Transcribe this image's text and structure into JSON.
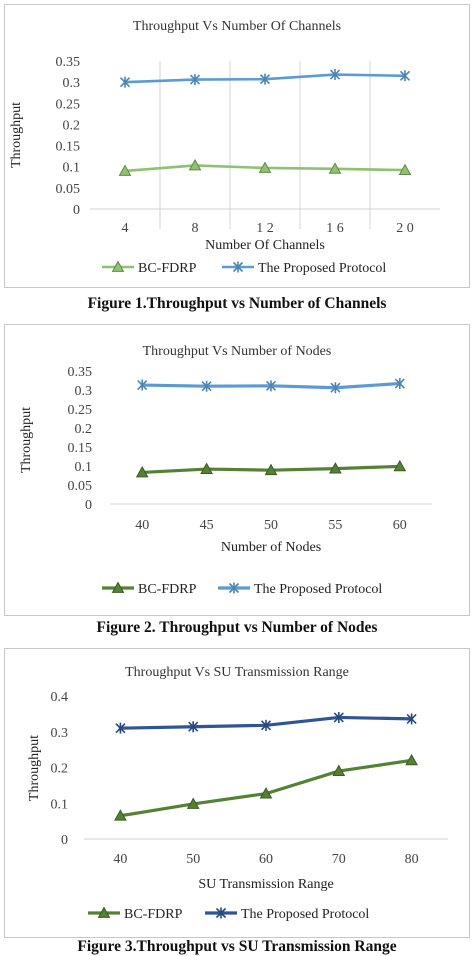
{
  "captions": [
    "Figure 1.Throughput vs Number of Channels",
    "Figure 2. Throughput vs Number of Nodes",
    "Figure 3.Throughput vs SU Transmission Range"
  ],
  "chart_data": [
    {
      "type": "line",
      "title": "Throughput Vs Number Of Channels",
      "xlabel": "Number Of Channels",
      "ylabel": "Throughput",
      "x_tick_labels": [
        "4",
        "8",
        "1 2",
        "1 6",
        "2 0"
      ],
      "y_tick_labels": [
        "0",
        "0.05",
        "0.1",
        "0.15",
        "0.2",
        "0.25",
        "0.3",
        "0.35"
      ],
      "ylim": [
        0,
        0.35
      ],
      "categories": [
        4,
        8,
        12,
        16,
        20
      ],
      "grid": "vertical",
      "legend_position": "bottom",
      "series": [
        {
          "name": "BC-FDRP",
          "values": [
            0.09,
            0.103,
            0.097,
            0.095,
            0.092
          ],
          "color": "#8dc26f",
          "marker": "triangle"
        },
        {
          "name": "The Proposed Protocol",
          "values": [
            0.3,
            0.306,
            0.307,
            0.318,
            0.315
          ],
          "color": "#5b9bd5",
          "marker": "star"
        }
      ]
    },
    {
      "type": "line",
      "title": "Throughput Vs Number of Nodes",
      "xlabel": "Number of Nodes",
      "ylabel": "Throughput",
      "x_tick_labels": [
        "40",
        "45",
        "50",
        "55",
        "60"
      ],
      "y_tick_labels": [
        "0",
        "0.05",
        "0.1",
        "0.15",
        "0.2",
        "0.25",
        "0.3",
        "0.35"
      ],
      "ylim": [
        0,
        0.35
      ],
      "categories": [
        40,
        45,
        50,
        55,
        60
      ],
      "grid": "none",
      "legend_position": "bottom",
      "series": [
        {
          "name": "BC-FDRP",
          "values": [
            0.083,
            0.092,
            0.089,
            0.093,
            0.099
          ],
          "color": "#548235",
          "marker": "triangle"
        },
        {
          "name": "The Proposed Protocol",
          "values": [
            0.313,
            0.31,
            0.311,
            0.306,
            0.317
          ],
          "color": "#5b9bd5",
          "marker": "star"
        }
      ]
    },
    {
      "type": "line",
      "title": "Throughput Vs SU Transmission Range",
      "xlabel": "SU Transmission Range",
      "ylabel": "Throughput",
      "x_tick_labels": [
        "40",
        "50",
        "60",
        "70",
        "80"
      ],
      "y_tick_labels": [
        "0",
        "0.1",
        "0.2",
        "0.3",
        "0.4"
      ],
      "ylim": [
        0,
        0.4
      ],
      "categories": [
        40,
        50,
        60,
        70,
        80
      ],
      "grid": "none",
      "legend_position": "bottom",
      "series": [
        {
          "name": "BC-FDRP",
          "values": [
            0.065,
            0.098,
            0.127,
            0.19,
            0.22
          ],
          "color": "#548235",
          "marker": "triangle"
        },
        {
          "name": "The Proposed Protocol",
          "values": [
            0.31,
            0.314,
            0.318,
            0.34,
            0.336
          ],
          "color": "#2f5597",
          "marker": "star"
        }
      ]
    }
  ]
}
